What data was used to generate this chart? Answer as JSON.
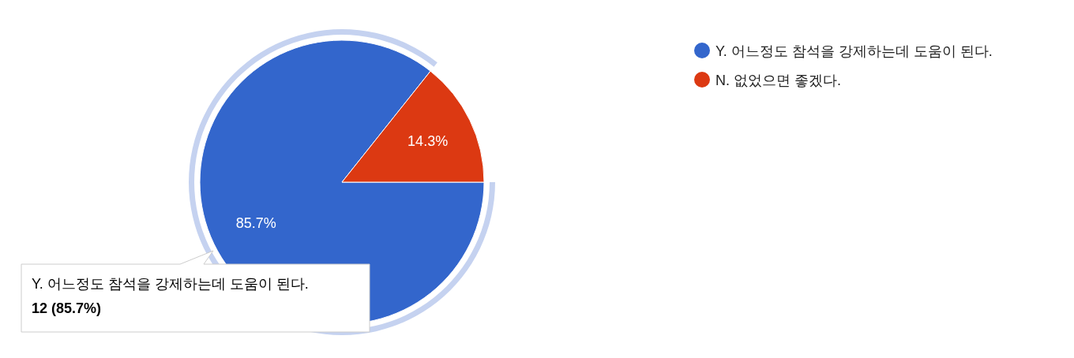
{
  "chart_data": {
    "type": "pie",
    "categories": [
      "Y. 어느정도 참석을 강제하는데 도움이 된다.",
      "N. 없었으면 좋겠다."
    ],
    "values": [
      85.7,
      14.3
    ],
    "colors": [
      "#3366cc",
      "#dc3912"
    ],
    "value_labels": [
      "85.7%",
      "14.3%"
    ],
    "legend": "top right",
    "annotations": [
      "Y. 어느정도 참석을 강제하는데 도움이 된다.",
      "12 (85.7%)"
    ]
  }
}
